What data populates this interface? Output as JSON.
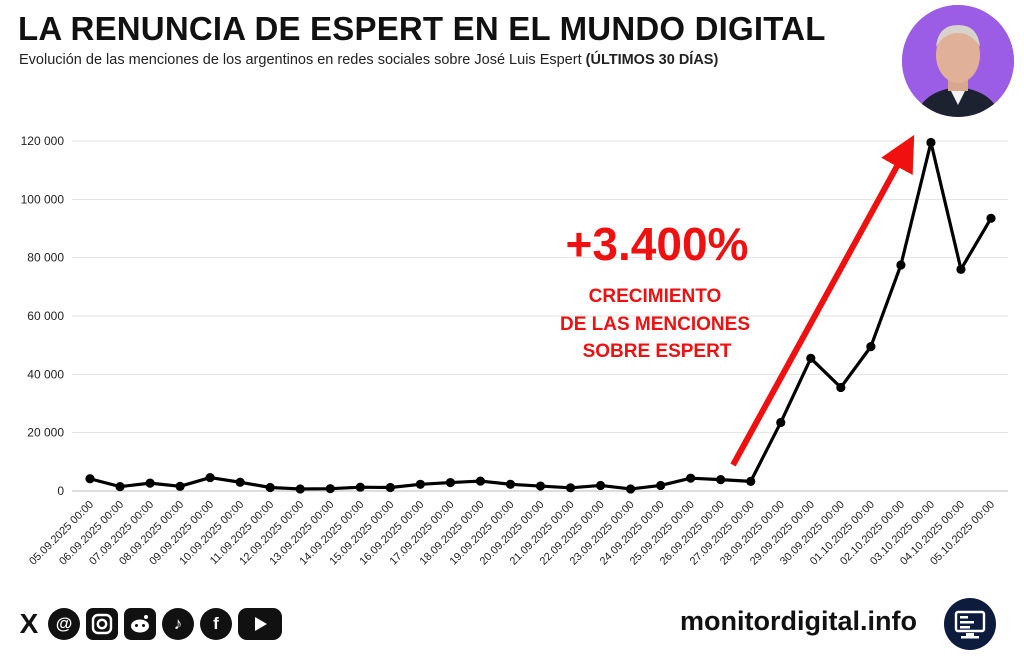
{
  "header": {
    "title": "LA RENUNCIA DE ESPERT EN EL MUNDO DIGITAL",
    "subtitle_main": "Evolución de las menciones de los argentinos en redes sociales sobre José Luis Espert",
    "subtitle_bold": "(ÚLTIMOS 30 DÍAS)"
  },
  "annotation": {
    "growth_value": "+3.400%",
    "line1": "CRECIMIENTO",
    "line2": "DE LAS MENCIONES",
    "line3": "SOBRE ESPERT",
    "color": "#f01010"
  },
  "footer": {
    "brand": "monitordigital.info",
    "icons": [
      "x-icon",
      "threads-icon",
      "instagram-icon",
      "reddit-icon",
      "tiktok-icon",
      "facebook-icon",
      "youtube-icon"
    ]
  },
  "chart_data": {
    "type": "line",
    "x": [
      "05.09.2025 00:00",
      "06.09.2025 00:00",
      "07.09.2025 00:00",
      "08.09.2025 00:00",
      "09.09.2025 00:00",
      "10.09.2025 00:00",
      "11.09.2025 00:00",
      "12.09.2025 00:00",
      "13.09.2025 00:00",
      "14.09.2025 00:00",
      "15.09.2025 00:00",
      "16.09.2025 00:00",
      "17.09.2025 00:00",
      "18.09.2025 00:00",
      "19.09.2025 00:00",
      "20.09.2025 00:00",
      "21.09.2025 00:00",
      "22.09.2025 00:00",
      "23.09.2025 00:00",
      "24.09.2025 00:00",
      "25.09.2025 00:00",
      "26.09.2025 00:00",
      "27.09.2025 00:00",
      "28.09.2025 00:00",
      "29.09.2025 00:00",
      "30.09.2025 00:00",
      "01.10.2025 00:00",
      "02.10.2025 00:00",
      "03.10.2025 00:00",
      "04.10.2025 00:00",
      "05.10.2025 00:00"
    ],
    "series": [
      {
        "name": "",
        "values": [
          4200,
          1500,
          2700,
          1600,
          4600,
          3000,
          1200,
          700,
          800,
          1300,
          1200,
          2300,
          2900,
          3400,
          2300,
          1700,
          1100,
          1900,
          700,
          1900,
          4400,
          3900,
          3300,
          23500,
          45500,
          35500,
          49500,
          77500,
          119500,
          76000,
          93500
        ]
      }
    ],
    "y_ticks": [
      "0",
      "20 000",
      "40 000",
      "60 000",
      "80 000",
      "100 000",
      "120 000"
    ],
    "ylim": [
      0,
      120000
    ],
    "grid": true,
    "line_color": "#000000"
  }
}
